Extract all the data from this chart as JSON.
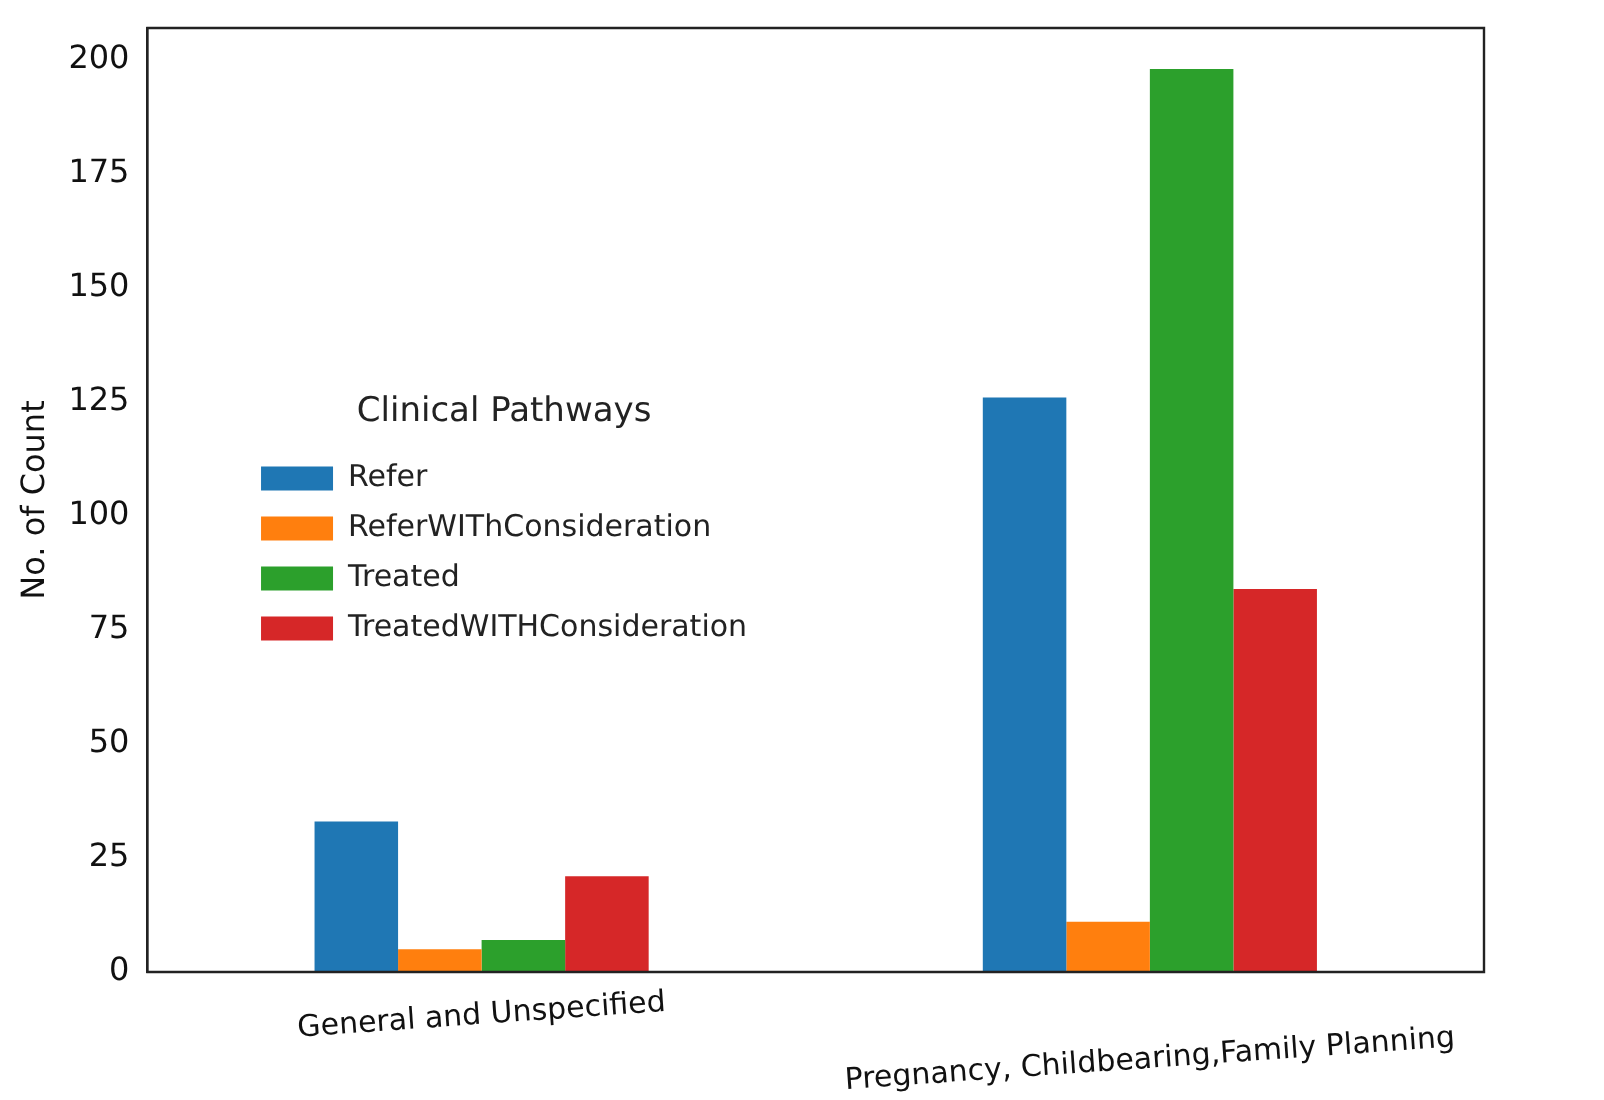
{
  "chart_data": {
    "type": "bar",
    "ylabel": "No. of Count",
    "legend_title": "Clinical Pathways",
    "legend": "center left",
    "grid": false,
    "categories": [
      "General and Unspecified",
      "Pregnancy, Childbearing,Family Planning"
    ],
    "series": [
      {
        "name": "Refer",
        "color": "#1f77b4",
        "values": [
          33,
          126
        ]
      },
      {
        "name": "ReferWIThConsideration",
        "color": "#ff7f0e",
        "values": [
          5,
          11
        ]
      },
      {
        "name": "Treated",
        "color": "#2ca02c",
        "values": [
          7,
          198
        ]
      },
      {
        "name": "TreatedWITHConsideration",
        "color": "#d62728",
        "values": [
          21,
          84
        ]
      }
    ],
    "ylim": [
      0,
      207
    ],
    "yticks": [
      0,
      25,
      50,
      75,
      100,
      125,
      150,
      175,
      200
    ]
  }
}
